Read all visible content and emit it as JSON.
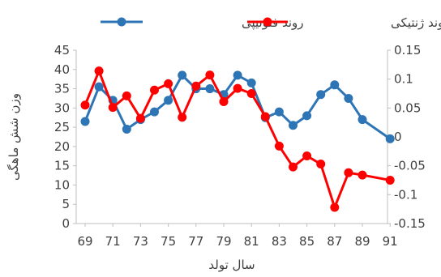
{
  "chart_data": {
    "type": "line",
    "title": "",
    "xlabel": "سال تولد",
    "ylabel": "وزن شش ماهگی",
    "x_tick_labels": [
      "69",
      "71",
      "73",
      "75",
      "77",
      "79",
      "81",
      "83",
      "85",
      "87",
      "89",
      "91"
    ],
    "ylim": [
      0,
      45
    ],
    "y_ticks": [
      "0",
      "5",
      "10",
      "15",
      "20",
      "25",
      "30",
      "35",
      "40",
      "45"
    ],
    "y2lim": [
      -0.15,
      0.15
    ],
    "y2_ticks": [
      "-0.15",
      "-0.1",
      "-0.05",
      "0",
      "0.05",
      "0.1",
      "0.15"
    ],
    "legend_position": "top",
    "series": [
      {
        "name": "روند فنوتیپی",
        "axis": "left",
        "color": "#2e75b6",
        "x": [
          69,
          70,
          71,
          72,
          73,
          74,
          75,
          76,
          77,
          78,
          79,
          80,
          81,
          82,
          83,
          84,
          85,
          86,
          87,
          88,
          89,
          91
        ],
        "values": [
          26.5,
          35.5,
          32.0,
          24.5,
          27.0,
          29.0,
          32.0,
          38.5,
          35.0,
          35.0,
          33.5,
          38.5,
          36.5,
          27.5,
          29.0,
          25.5,
          28.0,
          33.5,
          36.0,
          32.5,
          27.0,
          22.0
        ]
      },
      {
        "name": "روند ژنتیکی",
        "axis": "right",
        "color": "#ff0000",
        "x": [
          69,
          70,
          71,
          72,
          73,
          74,
          75,
          76,
          77,
          78,
          79,
          80,
          81,
          82,
          83,
          84,
          85,
          86,
          87,
          88,
          89,
          91
        ],
        "values": [
          0.055,
          0.114,
          0.051,
          0.071,
          0.032,
          0.081,
          0.092,
          0.034,
          0.088,
          0.107,
          0.061,
          0.084,
          0.075,
          0.035,
          -0.016,
          -0.052,
          -0.033,
          -0.047,
          -0.122,
          -0.062,
          -0.066,
          -0.075
        ]
      }
    ]
  }
}
